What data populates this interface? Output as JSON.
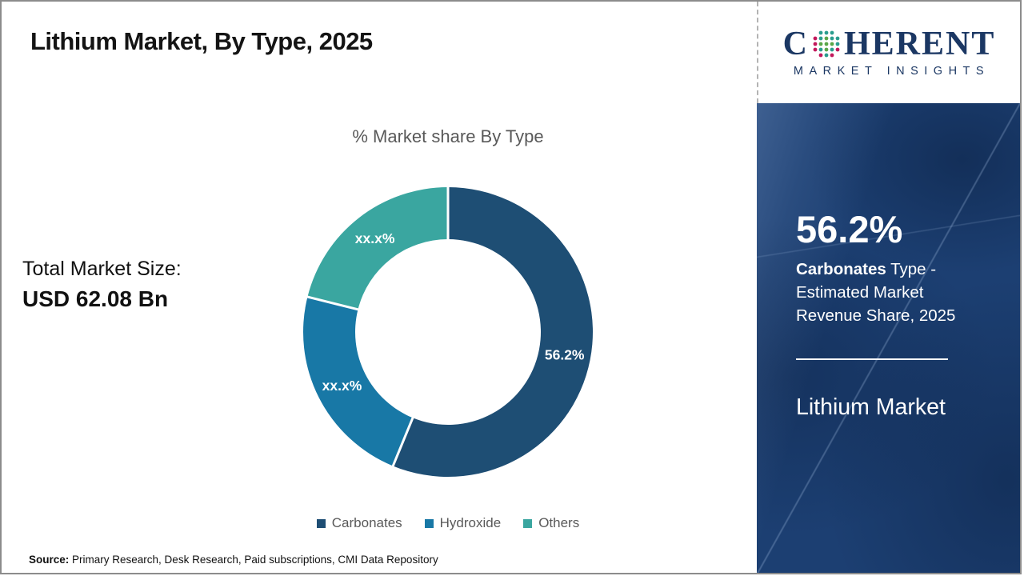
{
  "header": {
    "title": "Lithium Market, By Type, 2025"
  },
  "logo": {
    "brand_c": "C",
    "brand_rest": "HERENT",
    "tagline": "MARKET INSIGHTS",
    "brand_color": "#1b3763"
  },
  "left_panel": {
    "total_label": "Total Market Size:",
    "total_value": "USD 62.08 Bn"
  },
  "chart_data": {
    "type": "pie",
    "donut": true,
    "title": "% Market share By Type",
    "categories": [
      "Carbonates",
      "Hydroxide",
      "Others"
    ],
    "values": [
      56.2,
      22.7,
      21.1
    ],
    "slice_labels": [
      "56.2%",
      "xx.x%",
      "xx.x%"
    ],
    "colors": [
      "#1E4E74",
      "#1878A6",
      "#3AA6A0"
    ],
    "start_angle_deg": 0,
    "inner_radius_ratio": 0.64,
    "legend_position": "bottom",
    "slice_label_color": "#ffffff",
    "legend_text_color": "#595959"
  },
  "sidebar": {
    "stat_value": "56.2%",
    "stat_bold": "Carbonates",
    "stat_rest": " Type - Estimated Market Revenue Share, 2025",
    "panel_title": "Lithium Market",
    "bg_color": "#1C3F72"
  },
  "footer": {
    "source_label": "Source:",
    "source_text": "Primary Research, Desk Research, Paid subscriptions, CMI Data Repository"
  }
}
